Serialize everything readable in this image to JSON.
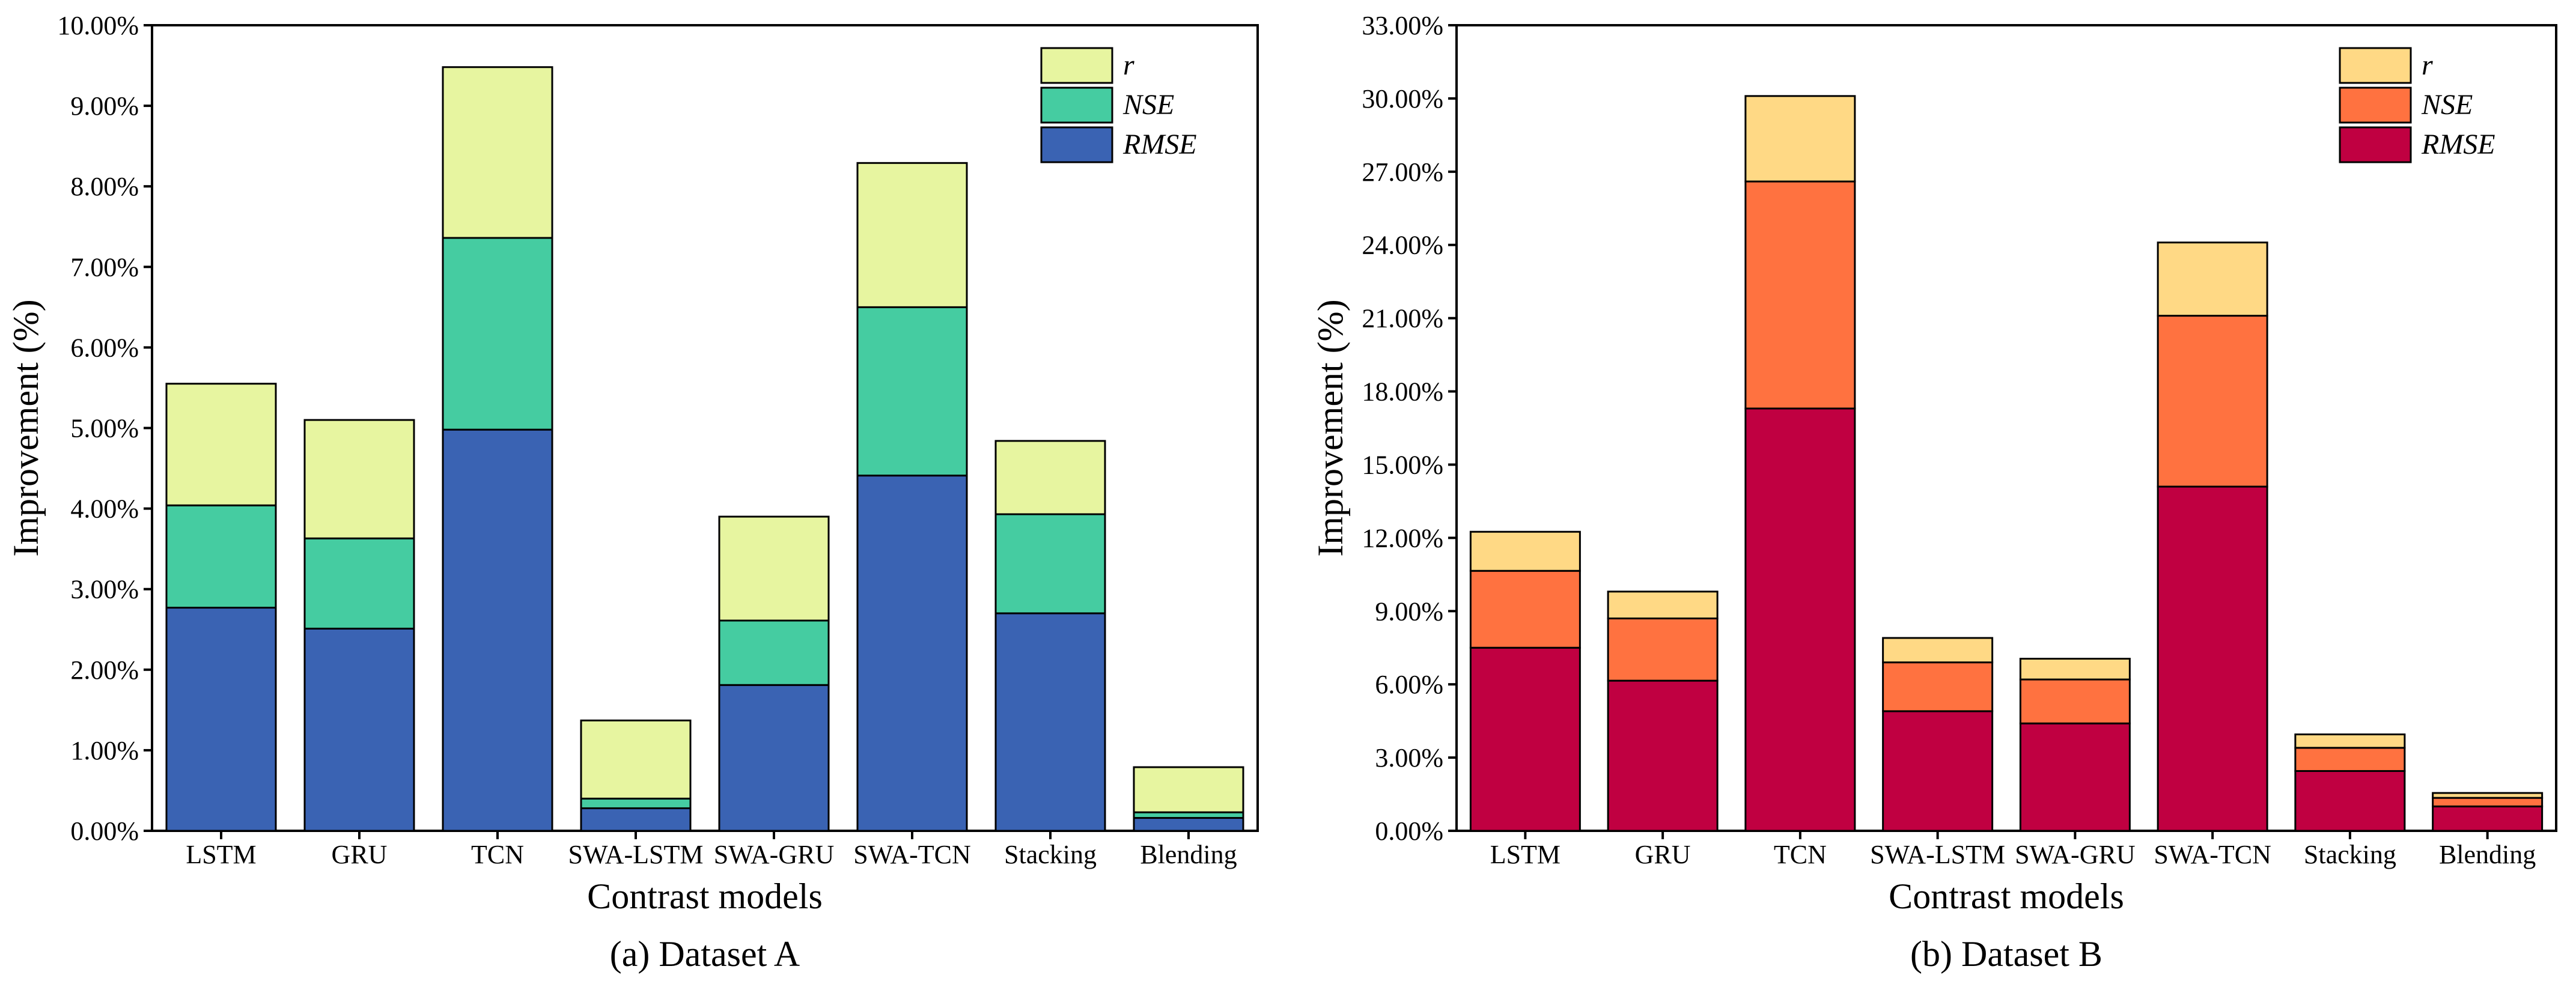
{
  "chart_data": [
    {
      "type": "bar",
      "stacked": true,
      "caption": "(a) Dataset A",
      "xlabel": "Contrast models",
      "ylabel": "Improvement (%)",
      "ylim": [
        0,
        10
      ],
      "yticks": [
        "0.00%",
        "1.00%",
        "2.00%",
        "3.00%",
        "4.00%",
        "5.00%",
        "6.00%",
        "7.00%",
        "8.00%",
        "9.00%",
        "10.00%"
      ],
      "categories": [
        "LSTM",
        "GRU",
        "TCN",
        "SWA-LSTM",
        "SWA-GRU",
        "SWA-TCN",
        "Stacking",
        "Blending"
      ],
      "series": [
        {
          "name": "RMSE",
          "color": "#3A63B3",
          "values": [
            2.77,
            2.51,
            4.98,
            0.28,
            1.81,
            4.41,
            2.7,
            0.16
          ]
        },
        {
          "name": "NSE",
          "color": "#45CCA1",
          "values": [
            1.27,
            1.12,
            2.38,
            0.12,
            0.8,
            2.09,
            1.23,
            0.07
          ]
        },
        {
          "name": "r",
          "color": "#E7F5A0",
          "values": [
            1.51,
            1.47,
            2.12,
            0.97,
            1.29,
            1.79,
            0.91,
            0.56
          ]
        }
      ],
      "legend": {
        "position": "top-right",
        "order": [
          "r",
          "NSE",
          "RMSE"
        ]
      }
    },
    {
      "type": "bar",
      "stacked": true,
      "caption": "(b) Dataset B",
      "xlabel": "Contrast models",
      "ylabel": "Improvement (%)",
      "ylim": [
        0,
        33
      ],
      "yticks": [
        "0.00%",
        "3.00%",
        "6.00%",
        "9.00%",
        "12.00%",
        "15.00%",
        "18.00%",
        "21.00%",
        "24.00%",
        "27.00%",
        "30.00%",
        "33.00%"
      ],
      "categories": [
        "LSTM",
        "GRU",
        "TCN",
        "SWA-LSTM",
        "SWA-GRU",
        "SWA-TCN",
        "Stacking",
        "Blending"
      ],
      "series": [
        {
          "name": "RMSE",
          "color": "#C00041",
          "values": [
            7.5,
            6.15,
            17.3,
            4.9,
            4.4,
            14.1,
            2.45,
            1.0
          ]
        },
        {
          "name": "NSE",
          "color": "#FF7240",
          "values": [
            3.15,
            2.55,
            9.3,
            2.0,
            1.8,
            7.0,
            0.95,
            0.35
          ]
        },
        {
          "name": "r",
          "color": "#FFD985",
          "values": [
            1.6,
            1.1,
            3.5,
            1.0,
            0.85,
            3.0,
            0.55,
            0.2
          ]
        }
      ],
      "legend": {
        "position": "top-right",
        "order": [
          "r",
          "NSE",
          "RMSE"
        ]
      }
    }
  ]
}
